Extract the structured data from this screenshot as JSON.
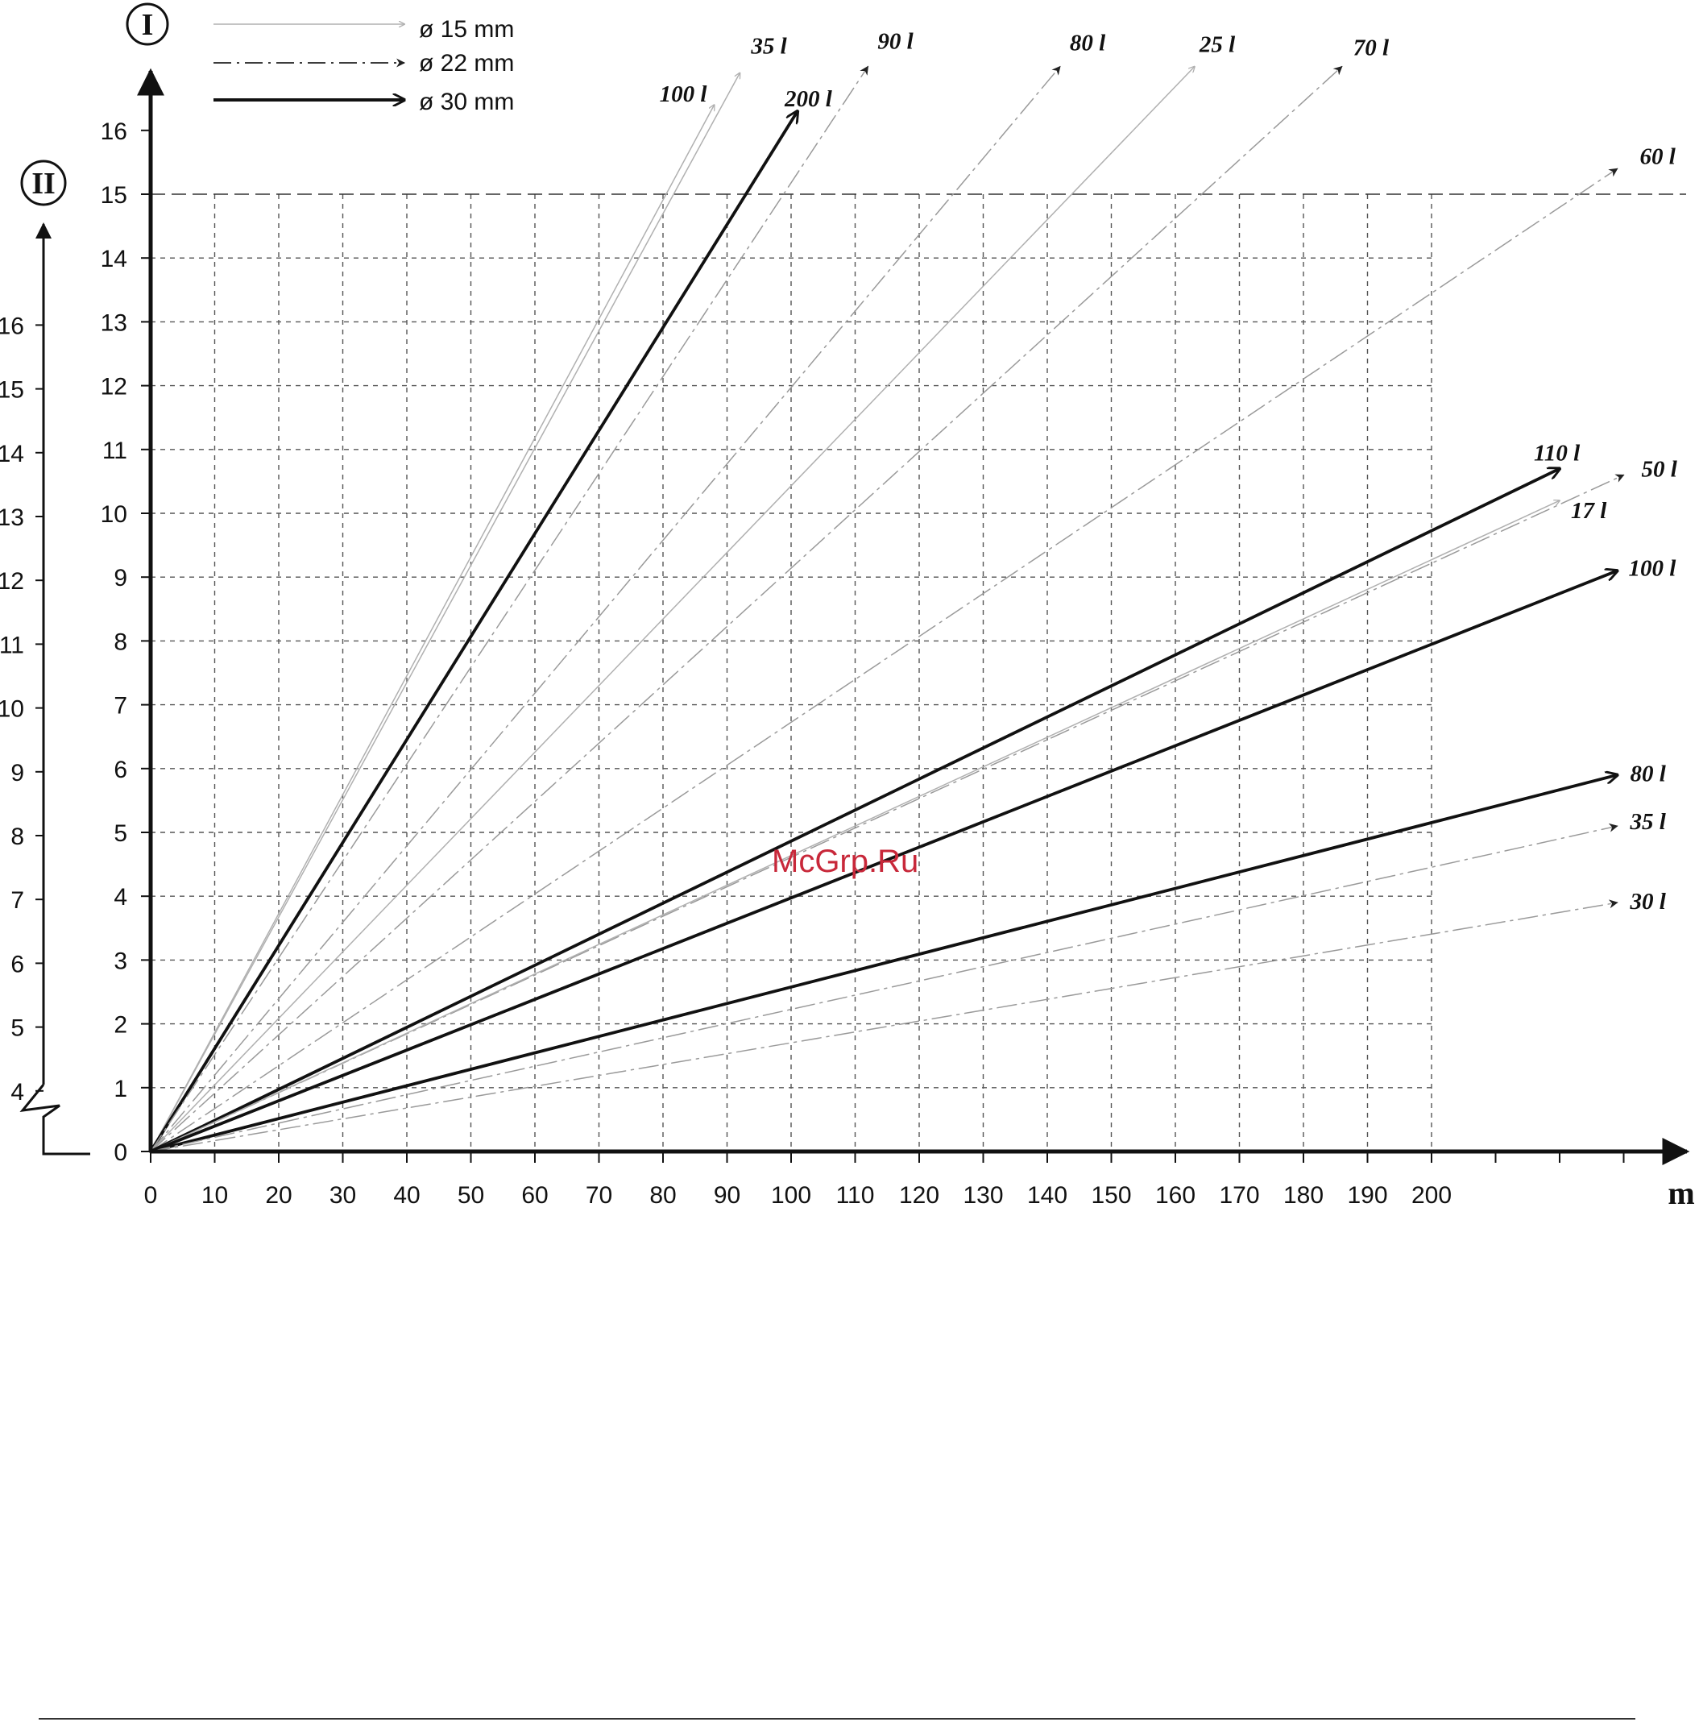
{
  "chart_data": {
    "type": "line",
    "title": "",
    "xlabel": "m",
    "ylabel": "I",
    "ylabel_secondary": "II",
    "xlim": [
      0,
      230
    ],
    "ylim": [
      0,
      16
    ],
    "x_ticks": [
      "0",
      "10",
      "20",
      "30",
      "40",
      "50",
      "60",
      "70",
      "80",
      "90",
      "100",
      "110",
      "120",
      "130",
      "140",
      "150",
      "160",
      "170",
      "180",
      "190",
      "200"
    ],
    "y_ticks": [
      "0",
      "1",
      "2",
      "3",
      "4",
      "5",
      "6",
      "7",
      "8",
      "9",
      "10",
      "11",
      "12",
      "13",
      "14",
      "15",
      "16"
    ],
    "y2_ticks": [
      "4",
      "5",
      "6",
      "7",
      "8",
      "9",
      "10",
      "11",
      "12",
      "13",
      "14",
      "15",
      "16"
    ],
    "y2_ticks_maps_to_primary": [
      1,
      2,
      3,
      4,
      5,
      6,
      7,
      8,
      9,
      10,
      11,
      12,
      13
    ],
    "reference_line_y": 15,
    "grid": true,
    "legend_position": "top-left",
    "legend": [
      {
        "label": "ø 15 mm",
        "style": "thin-solid"
      },
      {
        "label": "ø 22 mm",
        "style": "dash-dot"
      },
      {
        "label": "ø 30 mm",
        "style": "thick-solid"
      }
    ],
    "series": [
      {
        "name": "100 l",
        "diameter": "ø 15 mm",
        "points": [
          [
            0,
            0
          ],
          [
            88,
            16.4
          ]
        ]
      },
      {
        "name": "35 l",
        "diameter": "ø 15 mm",
        "points": [
          [
            0,
            0
          ],
          [
            92,
            16.9
          ]
        ]
      },
      {
        "name": "200 l",
        "diameter": "ø 30 mm",
        "points": [
          [
            0,
            0
          ],
          [
            101,
            16.3
          ]
        ]
      },
      {
        "name": "90 l",
        "diameter": "ø 22 mm",
        "points": [
          [
            0,
            0
          ],
          [
            112,
            17.0
          ]
        ]
      },
      {
        "name": "80 l",
        "diameter": "ø 22 mm",
        "points": [
          [
            0,
            0
          ],
          [
            142,
            17.0
          ]
        ]
      },
      {
        "name": "25 l",
        "diameter": "ø 15 mm",
        "points": [
          [
            0,
            0
          ],
          [
            163,
            17.0
          ]
        ]
      },
      {
        "name": "70 l",
        "diameter": "ø 22 mm",
        "points": [
          [
            0,
            0
          ],
          [
            186,
            17.0
          ]
        ]
      },
      {
        "name": "60 l",
        "diameter": "ø 22 mm",
        "points": [
          [
            0,
            0
          ],
          [
            229,
            15.4
          ]
        ]
      },
      {
        "name": "110 l",
        "diameter": "ø 30 mm",
        "points": [
          [
            0,
            0
          ],
          [
            220,
            10.7
          ]
        ]
      },
      {
        "name": "50 l",
        "diameter": "ø 22 mm",
        "points": [
          [
            0,
            0
          ],
          [
            230,
            10.6
          ]
        ]
      },
      {
        "name": "17 l",
        "diameter": "ø 15 mm",
        "points": [
          [
            0,
            0
          ],
          [
            220,
            10.2
          ]
        ]
      },
      {
        "name": "100 l",
        "diameter": "ø 30 mm",
        "points": [
          [
            0,
            0
          ],
          [
            229,
            9.1
          ]
        ]
      },
      {
        "name": "80 l",
        "diameter": "ø 30 mm",
        "points": [
          [
            0,
            0
          ],
          [
            229,
            5.9
          ]
        ]
      },
      {
        "name": "35 l",
        "diameter": "ø 22 mm",
        "points": [
          [
            0,
            0
          ],
          [
            229,
            5.1
          ]
        ]
      },
      {
        "name": "30 l",
        "diameter": "ø 22 mm",
        "points": [
          [
            0,
            0
          ],
          [
            229,
            3.9
          ]
        ]
      }
    ]
  },
  "watermark": "McGrp.Ru"
}
